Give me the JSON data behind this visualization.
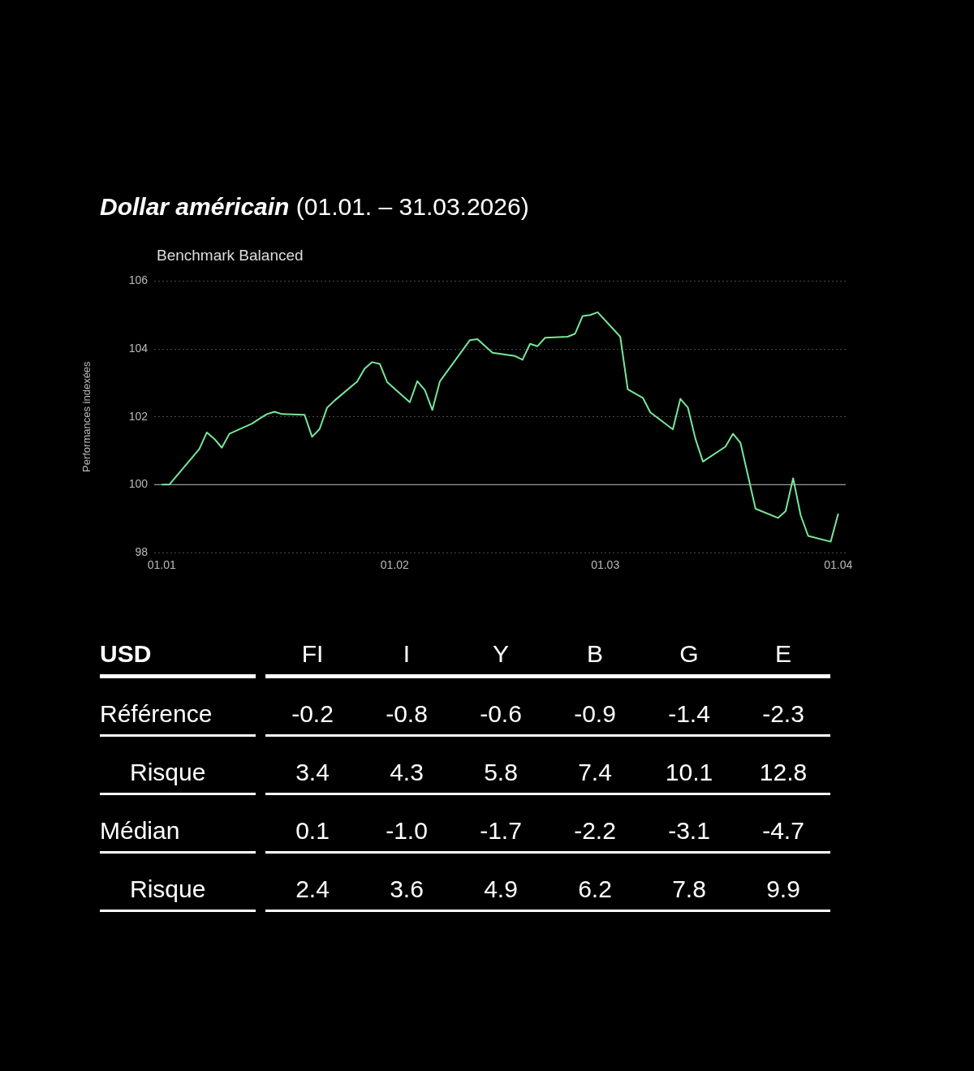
{
  "chart_data": [
    {
      "type": "line",
      "title": "Dollar américain (01.01. – 31.03.2026)",
      "subtitle": "Benchmark Balanced",
      "ylabel": "Performances indexées",
      "x": [
        "2026-01-01",
        "2026-01-02",
        "2026-01-06",
        "2026-01-07",
        "2026-01-08",
        "2026-01-09",
        "2026-01-10",
        "2026-01-13",
        "2026-01-14",
        "2026-01-15",
        "2026-01-16",
        "2026-01-17",
        "2026-01-20",
        "2026-01-21",
        "2026-01-22",
        "2026-01-23",
        "2026-01-24",
        "2026-01-27",
        "2026-01-28",
        "2026-01-29",
        "2026-01-30",
        "2026-01-31",
        "2026-02-03",
        "2026-02-04",
        "2026-02-05",
        "2026-02-06",
        "2026-02-07",
        "2026-02-11",
        "2026-02-12",
        "2026-02-14",
        "2026-02-17",
        "2026-02-18",
        "2026-02-19",
        "2026-02-20",
        "2026-02-21",
        "2026-02-24",
        "2026-02-25",
        "2026-02-26",
        "2026-02-27",
        "2026-02-28",
        "2026-03-03",
        "2026-03-04",
        "2026-03-06",
        "2026-03-07",
        "2026-03-10",
        "2026-03-11",
        "2026-03-12",
        "2026-03-13",
        "2026-03-14",
        "2026-03-17",
        "2026-03-18",
        "2026-03-19",
        "2026-03-21",
        "2026-03-24",
        "2026-03-25",
        "2026-03-26",
        "2026-03-27",
        "2026-03-28",
        "2026-03-31",
        "2026-04-01"
      ],
      "series": [
        {
          "color": "#79e59b",
          "values": [
            100.0,
            100.0,
            101.05,
            101.54,
            101.35,
            101.09,
            101.5,
            101.8,
            101.94,
            102.08,
            102.15,
            102.08,
            102.06,
            101.41,
            101.64,
            102.27,
            102.48,
            103.04,
            103.42,
            103.61,
            103.56,
            103.02,
            102.43,
            103.05,
            102.79,
            102.2,
            103.04,
            104.26,
            104.29,
            103.89,
            103.79,
            103.68,
            104.15,
            104.08,
            104.33,
            104.36,
            104.45,
            104.97,
            105.0,
            105.08,
            104.36,
            102.81,
            102.56,
            102.13,
            101.63,
            102.53,
            102.27,
            101.35,
            100.68,
            101.12,
            101.5,
            101.23,
            99.29,
            99.02,
            99.22,
            100.19,
            99.1,
            98.49,
            98.32,
            99.15
          ]
        }
      ],
      "xlim": [
        "2025-12-31",
        "2026-04-02"
      ],
      "xticks": [
        {
          "value": "2026-01-01",
          "label": "01.01"
        },
        {
          "value": "2026-02-01",
          "label": "01.02"
        },
        {
          "value": "2026-03-01",
          "label": "01.03"
        },
        {
          "value": "2026-04-01",
          "label": "01.04"
        }
      ],
      "ylim": [
        98,
        106
      ],
      "yticks": [
        98,
        100,
        102,
        104,
        106
      ],
      "grid": "y",
      "legend": false,
      "marker": "none",
      "line_style": "solid",
      "ref_lines": [
        {
          "axis": "y",
          "value": 100,
          "color": "#9a9a9a"
        }
      ]
    },
    {
      "type": "other",
      "title": "USD",
      "categories": [
        "FI",
        "I",
        "Y",
        "B",
        "G",
        "E"
      ],
      "y_categories": [
        "Référence",
        "Risque",
        "Médian",
        "Risque"
      ],
      "cell_labels": [
        [
          "-0.2",
          "-0.8",
          "-0.6",
          "-0.9",
          "-1.4",
          "-2.3"
        ],
        [
          "3.4",
          "4.3",
          "5.8",
          "7.4",
          "10.1",
          "12.8"
        ],
        [
          "0.1",
          "-1.0",
          "-1.7",
          "-2.2",
          "-3.1",
          "-4.7"
        ],
        [
          "2.4",
          "3.6",
          "4.9",
          "6.2",
          "7.8",
          "9.9"
        ]
      ]
    }
  ]
}
